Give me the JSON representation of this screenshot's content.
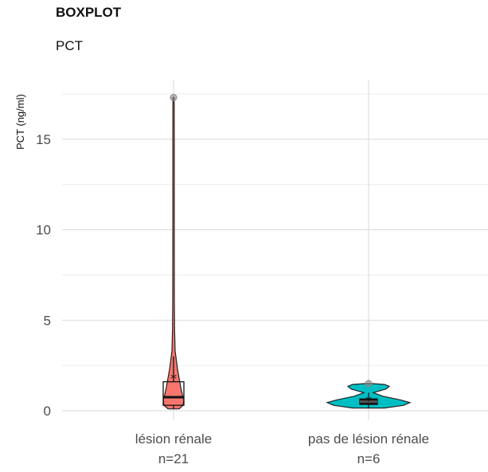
{
  "header": {
    "title": "BOXPLOT",
    "subtitle": "PCT"
  },
  "chart_data": {
    "type": "violin-boxplot",
    "title": "BOXPLOT",
    "subtitle": "PCT",
    "xlabel": "",
    "ylabel": "PCT (ng/ml)",
    "ylim": [
      0,
      17.5
    ],
    "yticks": [
      0,
      5,
      10,
      15
    ],
    "grid": true,
    "legend": "none",
    "categories": [
      {
        "label": "lésion rénale",
        "n_label": "n=21",
        "color": "#F8766D",
        "min": 0.1,
        "q1": 0.3,
        "median": 0.75,
        "q3": 1.6,
        "whisker_max": 3.0,
        "max": 17.3,
        "mean": 1.9,
        "outliers": [
          17.3
        ]
      },
      {
        "label": "pas de lésion rénale",
        "n_label": "n=6",
        "color": "#00BFC4",
        "min": 0.15,
        "q1": 0.35,
        "median": 0.5,
        "q3": 0.65,
        "whisker_max": 1.0,
        "max": 1.5,
        "mean": 0.65,
        "outliers": [
          1.5
        ]
      }
    ]
  }
}
